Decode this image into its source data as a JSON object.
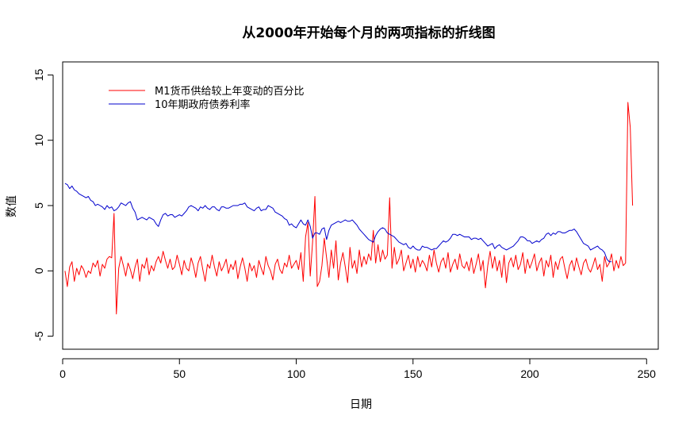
{
  "chart_data": {
    "type": "line",
    "title": "从2000年开始每个月的两项指标的折线图",
    "xlabel": "日期",
    "ylabel": "数值",
    "xlim": [
      0,
      255
    ],
    "ylim": [
      -6,
      16
    ],
    "xticks": [
      0,
      50,
      100,
      150,
      200,
      250
    ],
    "yticks": [
      -5,
      0,
      5,
      10,
      15
    ],
    "grid": false,
    "legend_position": "top-left",
    "series": [
      {
        "name": "M1货币供给较上年变动的百分比",
        "color": "#ff0000",
        "x_start": 1,
        "values": [
          0.0,
          -1.2,
          0.3,
          0.7,
          -0.8,
          0.2,
          -0.3,
          0.4,
          0.1,
          -0.5,
          0.0,
          -0.2,
          0.6,
          0.3,
          0.8,
          -0.4,
          0.5,
          0.2,
          0.9,
          1.1,
          1.0,
          4.4,
          -3.3,
          0.2,
          1.1,
          0.4,
          -0.4,
          0.6,
          0.1,
          -0.6,
          0.3,
          0.9,
          -0.8,
          0.5,
          0.2,
          1.0,
          -0.3,
          0.4,
          0.0,
          0.7,
          1.1,
          0.6,
          1.5,
          0.8,
          0.2,
          0.9,
          0.1,
          0.3,
          1.2,
          0.5,
          -0.3,
          0.8,
          0.2,
          0.0,
          1.0,
          0.4,
          -0.5,
          0.6,
          1.1,
          0.1,
          -0.8,
          0.5,
          0.2,
          1.2,
          0.3,
          -0.4,
          0.7,
          0.0,
          0.4,
          0.9,
          -0.2,
          0.5,
          0.1,
          0.8,
          -0.6,
          0.3,
          1.0,
          0.2,
          -0.8,
          0.6,
          0.0,
          0.4,
          -0.5,
          0.8,
          0.2,
          -0.3,
          1.1,
          0.4,
          0.0,
          -0.7,
          0.5,
          0.9,
          0.1,
          -0.2,
          0.6,
          0.3,
          1.2,
          0.2,
          0.5,
          0.8,
          0.1,
          1.4,
          -0.8,
          2.6,
          3.7,
          -0.4,
          2.2,
          5.7,
          -1.2,
          -0.8,
          0.4,
          2.5,
          1.0,
          -0.5,
          1.6,
          0.2,
          2.3,
          -0.7,
          0.6,
          1.4,
          0.3,
          -0.9,
          1.8,
          0.2,
          0.8,
          -0.2,
          1.6,
          0.3,
          1.1,
          0.5,
          1.3,
          0.8,
          3.1,
          0.6,
          2.0,
          0.7,
          1.6,
          0.9,
          1.2,
          5.6,
          0.2,
          1.8,
          0.5,
          0.9,
          1.6,
          0.0,
          0.6,
          1.2,
          0.2,
          0.9,
          -0.1,
          1.1,
          0.3,
          0.8,
          0.5,
          0.0,
          1.2,
          0.3,
          1.6,
          0.6,
          -0.1,
          0.7,
          1.0,
          0.2,
          1.4,
          -0.1,
          0.5,
          0.9,
          0.1,
          1.3,
          0.4,
          0.2,
          0.7,
          0.0,
          1.0,
          -0.2,
          0.5,
          1.3,
          0.0,
          0.8,
          -1.3,
          0.4,
          1.5,
          0.2,
          1.1,
          0.0,
          0.8,
          -0.5,
          1.2,
          -0.9,
          0.6,
          1.0,
          0.3,
          1.2,
          0.1,
          0.5,
          1.4,
          -0.2,
          0.9,
          0.2,
          0.7,
          1.3,
          0.0,
          0.6,
          1.0,
          -0.4,
          0.8,
          0.3,
          1.2,
          -0.5,
          0.7,
          0.1,
          0.9,
          1.1,
          0.2,
          -0.6,
          0.4,
          0.8,
          0.0,
          1.0,
          0.3,
          -0.3,
          0.6,
          0.9,
          0.2,
          -0.1,
          0.4,
          1.0,
          0.1,
          0.5,
          -0.8,
          1.1,
          0.3,
          0.6,
          1.3,
          0.0,
          0.8,
          0.2,
          1.1,
          0.4,
          0.6,
          12.9,
          11.0,
          5.0
        ]
      },
      {
        "name": "10年期政府债券利率",
        "color": "#0000cd",
        "x_start": 1,
        "values": [
          6.7,
          6.6,
          6.3,
          6.5,
          6.2,
          6.1,
          5.9,
          5.8,
          5.7,
          5.6,
          5.7,
          5.4,
          5.3,
          5.0,
          5.1,
          5.0,
          4.9,
          4.7,
          5.0,
          4.8,
          4.9,
          4.6,
          4.7,
          4.9,
          5.2,
          5.1,
          5.0,
          5.2,
          5.3,
          4.8,
          4.5,
          3.9,
          4.0,
          4.1,
          4.0,
          3.9,
          4.1,
          4.0,
          3.9,
          3.6,
          3.4,
          3.9,
          4.3,
          4.4,
          4.2,
          4.3,
          4.3,
          4.1,
          4.2,
          4.3,
          4.2,
          4.4,
          4.6,
          4.9,
          5.0,
          4.9,
          4.8,
          4.6,
          4.9,
          4.8,
          5.0,
          4.8,
          4.7,
          4.9,
          4.9,
          4.7,
          4.6,
          4.9,
          4.9,
          4.8,
          4.8,
          4.9,
          5.0,
          5.0,
          5.0,
          5.1,
          5.1,
          5.2,
          4.9,
          4.8,
          4.7,
          4.6,
          4.8,
          4.9,
          4.6,
          4.7,
          4.7,
          5.0,
          4.9,
          4.8,
          4.5,
          4.4,
          4.3,
          4.2,
          4.0,
          3.9,
          3.5,
          3.6,
          3.4,
          3.3,
          3.6,
          3.9,
          3.6,
          3.5,
          3.9,
          3.4,
          2.5,
          2.9,
          2.9,
          2.8,
          3.2,
          3.3,
          2.4,
          3.1,
          3.5,
          3.6,
          3.7,
          3.8,
          3.7,
          3.8,
          3.9,
          3.8,
          3.8,
          3.9,
          3.7,
          3.5,
          3.2,
          3.0,
          2.8,
          2.6,
          2.4,
          2.3,
          2.2,
          2.7,
          3.0,
          3.2,
          3.3,
          3.2,
          2.9,
          2.8,
          2.7,
          2.6,
          2.4,
          2.2,
          2.1,
          2.0,
          2.1,
          1.8,
          1.7,
          1.9,
          1.7,
          1.6,
          1.6,
          1.9,
          1.8,
          1.8,
          1.7,
          1.6,
          1.7,
          1.7,
          1.9,
          2.1,
          2.3,
          2.2,
          2.3,
          2.5,
          2.8,
          2.8,
          2.7,
          2.8,
          2.7,
          2.6,
          2.6,
          2.6,
          2.4,
          2.5,
          2.5,
          2.4,
          2.5,
          2.3,
          2.1,
          1.9,
          2.0,
          2.1,
          1.7,
          1.9,
          2.0,
          1.8,
          1.7,
          1.6,
          1.7,
          1.8,
          1.9,
          2.1,
          2.3,
          2.6,
          2.6,
          2.5,
          2.3,
          2.3,
          2.1,
          2.2,
          2.3,
          2.2,
          2.4,
          2.5,
          2.8,
          2.9,
          2.7,
          2.9,
          2.8,
          3.0,
          3.0,
          2.9,
          2.9,
          3.0,
          3.1,
          3.1,
          3.2,
          3.0,
          2.7,
          2.4,
          2.1,
          2.0,
          1.9,
          1.6,
          1.7,
          1.8,
          1.9,
          1.7,
          1.6,
          1.4,
          0.9,
          0.7,
          0.7
        ]
      }
    ]
  }
}
